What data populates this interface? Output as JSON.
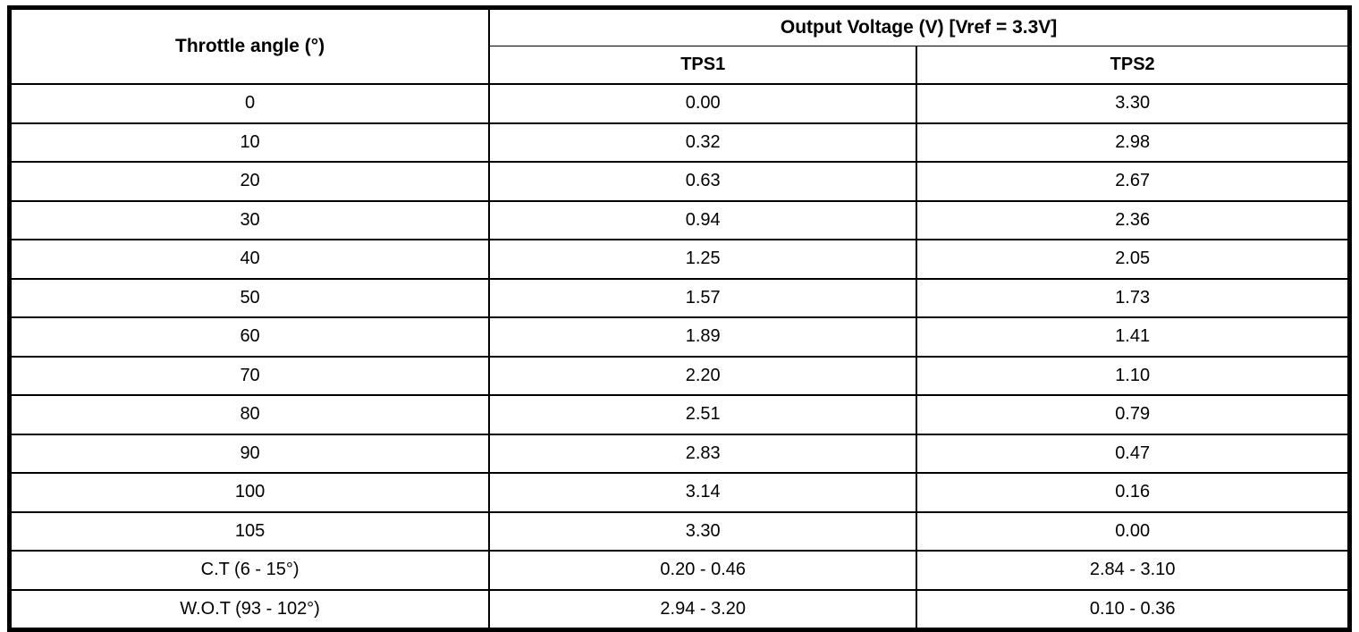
{
  "chart_data": {
    "type": "table",
    "title": "Output Voltage (V) [Vref = 3.3V]",
    "columns": {
      "throttle_angle": "Throttle angle (°)",
      "group_header": "Output Voltage (V) [Vref = 3.3V]",
      "tps1": "TPS1",
      "tps2": "TPS2"
    },
    "rows": [
      {
        "angle": "0",
        "tps1": "0.00",
        "tps2": "3.30"
      },
      {
        "angle": "10",
        "tps1": "0.32",
        "tps2": "2.98"
      },
      {
        "angle": "20",
        "tps1": "0.63",
        "tps2": "2.67"
      },
      {
        "angle": "30",
        "tps1": "0.94",
        "tps2": "2.36"
      },
      {
        "angle": "40",
        "tps1": "1.25",
        "tps2": "2.05"
      },
      {
        "angle": "50",
        "tps1": "1.57",
        "tps2": "1.73"
      },
      {
        "angle": "60",
        "tps1": "1.89",
        "tps2": "1.41"
      },
      {
        "angle": "70",
        "tps1": "2.20",
        "tps2": "1.10"
      },
      {
        "angle": "80",
        "tps1": "2.51",
        "tps2": "0.79"
      },
      {
        "angle": "90",
        "tps1": "2.83",
        "tps2": "0.47"
      },
      {
        "angle": "100",
        "tps1": "3.14",
        "tps2": "0.16"
      },
      {
        "angle": "105",
        "tps1": "3.30",
        "tps2": "0.00"
      },
      {
        "angle": "C.T (6 - 15°)",
        "tps1": "0.20 - 0.46",
        "tps2": "2.84 - 3.10"
      },
      {
        "angle": "W.O.T (93 - 102°)",
        "tps1": "2.94 - 3.20",
        "tps2": "0.10 - 0.36"
      }
    ],
    "layout": {
      "grid": "on",
      "vref": "3.3V",
      "voltage_unit": "V",
      "angle_unit": "°"
    }
  },
  "colors": {
    "border": "#000000",
    "background": "#ffffff",
    "text": "#000000"
  }
}
